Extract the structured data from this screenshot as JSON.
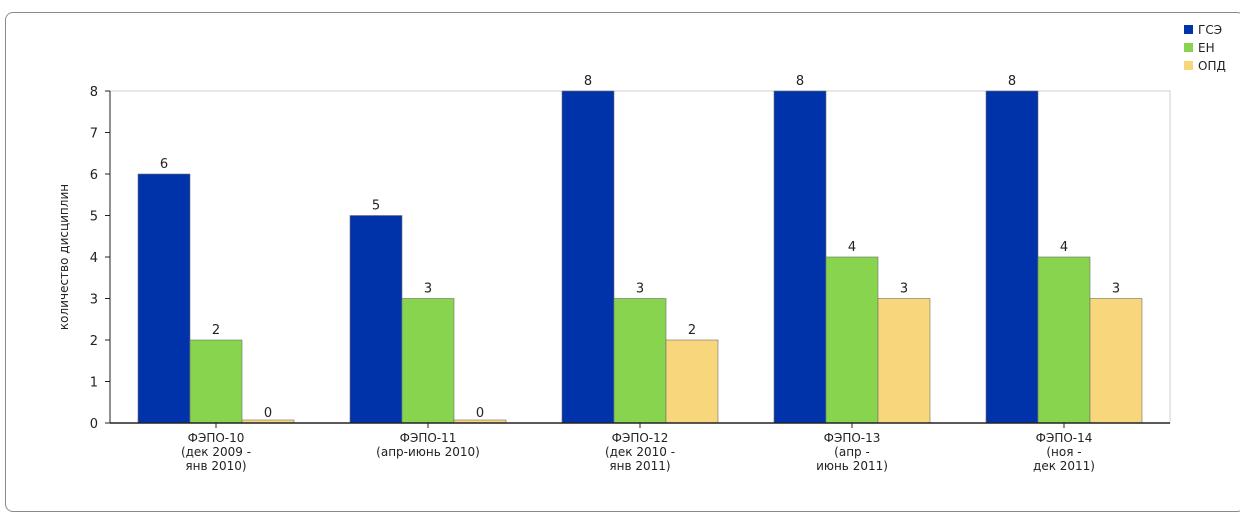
{
  "chart_data": {
    "type": "bar",
    "ylabel": "количество дисциплин",
    "ylim": [
      0,
      8
    ],
    "yticks": [
      "0",
      "1",
      "2",
      "3",
      "4",
      "5",
      "6",
      "7",
      "8"
    ],
    "categories": [
      [
        "ФЭПО-10",
        "(дек 2009 -",
        "янв 2010)"
      ],
      [
        "ФЭПО-11",
        "(апр-июнь 2010)"
      ],
      [
        "ФЭПО-12",
        "(дек 2010 -",
        "янв 2011)"
      ],
      [
        "ФЭПО-13",
        "(апр -",
        "июнь 2011)"
      ],
      [
        "ФЭПО-14",
        "(ноя -",
        "дек 2011)"
      ]
    ],
    "series": [
      {
        "name": "ГСЭ",
        "color": "#0033aa",
        "values": [
          6,
          5,
          8,
          8,
          8
        ]
      },
      {
        "name": "ЕН",
        "color": "#88d44f",
        "values": [
          2,
          3,
          3,
          4,
          4
        ]
      },
      {
        "name": "ОПД",
        "color": "#f7d67c",
        "values": [
          0,
          0,
          2,
          3,
          3
        ]
      }
    ],
    "legend_position": "top-right",
    "grid": false
  }
}
